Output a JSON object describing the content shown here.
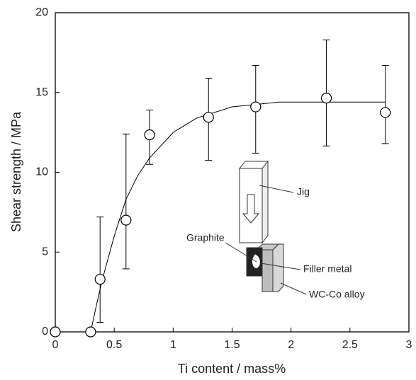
{
  "chart_data": {
    "type": "scatter",
    "x_label": "Ti content / mass%",
    "y_label": "Shear strength / MPa",
    "xlim": [
      0,
      3
    ],
    "xticks": [
      0,
      0.5,
      1,
      1.5,
      2,
      2.5,
      3
    ],
    "ylim": [
      0,
      20
    ],
    "yticks": [
      0,
      5,
      10,
      15,
      20
    ],
    "color": "#000000",
    "points": {
      "x": [
        0,
        0.3,
        0.38,
        0.6,
        0.8,
        1.3,
        1.7,
        2.3,
        2.8
      ],
      "y": [
        0,
        0,
        3.3,
        7.0,
        12.35,
        13.45,
        14.1,
        14.65,
        13.75
      ],
      "lower": [
        null,
        null,
        0.6,
        3.95,
        10.5,
        10.75,
        11.2,
        11.65,
        11.8
      ],
      "upper": [
        null,
        null,
        7.2,
        12.4,
        13.9,
        15.9,
        16.7,
        18.3,
        16.7
      ]
    },
    "curve": {
      "x": [
        0.3,
        0.35,
        0.4,
        0.5,
        0.6,
        0.7,
        0.8,
        1.0,
        1.2,
        1.5,
        1.9,
        2.8
      ],
      "y": [
        0,
        1.7,
        3.3,
        6.0,
        8.3,
        9.8,
        10.9,
        12.5,
        13.4,
        14.1,
        14.4,
        14.4
      ]
    },
    "annotations": [
      "Jig",
      "Graphite",
      "Filler metal",
      "WC-Co alloy"
    ]
  }
}
